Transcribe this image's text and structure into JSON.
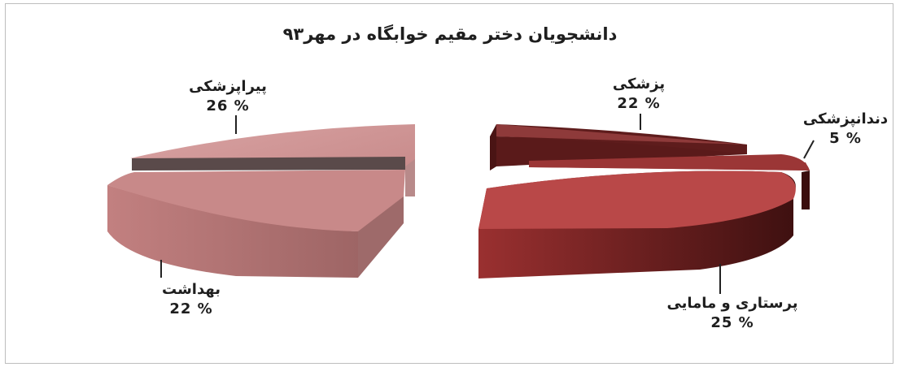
{
  "chart_data": {
    "type": "pie",
    "title": "دانشجویان دختر مقیم خوابگاه در مهر۹۳",
    "slices": [
      {
        "label": "پزشکی",
        "value": 22,
        "value_label": "22 %",
        "color": "#8e3a3a"
      },
      {
        "label": "دندانپزشکی",
        "value": 5,
        "value_label": "5 %",
        "color": "#a33b3b"
      },
      {
        "label": "پرستاری و مامایی",
        "value": 25,
        "value_label": "25 %",
        "color": "#b94848"
      },
      {
        "label": "بهداشت",
        "value": 22,
        "value_label": "22 %",
        "color": "#c98a8a"
      },
      {
        "label": "پیراپزشکی",
        "value": 26,
        "value_label": "26 %",
        "color": "#d6b0b0"
      }
    ],
    "style": "3d-exploded"
  }
}
